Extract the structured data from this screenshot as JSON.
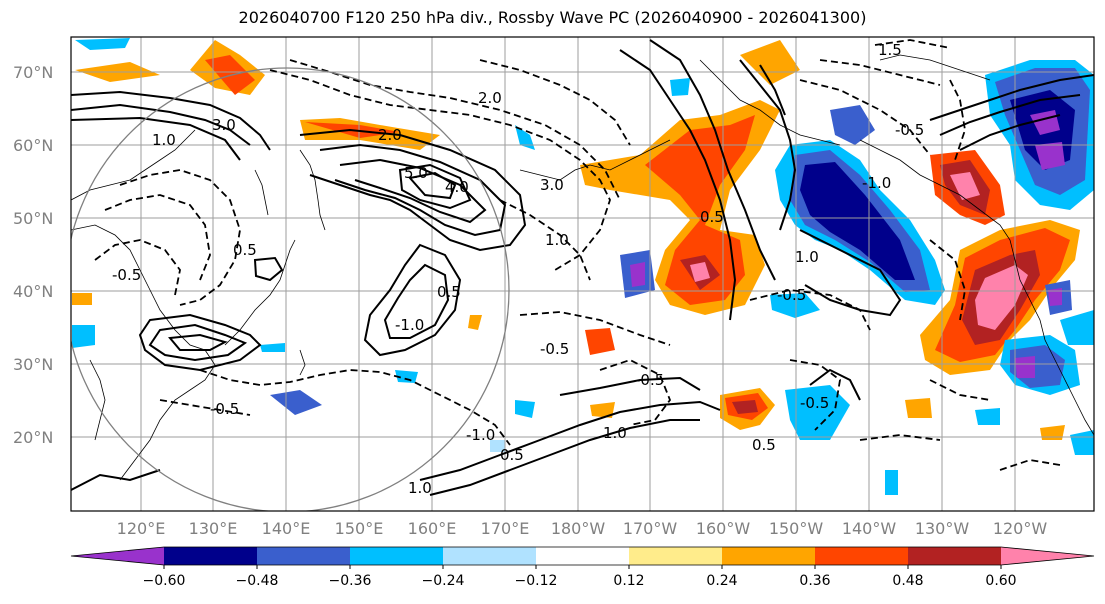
{
  "title": "2026040700 F120 250 hPa div., Rossby Wave PC (2026040900 - 2026041300)",
  "lat_labels": [
    "70°N",
    "60°N",
    "50°N",
    "40°N",
    "30°N",
    "20°N"
  ],
  "lon_labels": [
    "120°E",
    "130°E",
    "140°E",
    "150°E",
    "160°E",
    "170°E",
    "180°W",
    "170°W",
    "160°W",
    "150°W",
    "140°W",
    "130°W",
    "120°W"
  ],
  "contour_labels": [
    "3.0",
    "1.0",
    "2.0",
    "1.5",
    "-0.5",
    "0.5",
    "5.0",
    "4.0",
    "3.0",
    "2.0",
    "1.0",
    "-0.5",
    "0.5",
    "-1.0",
    "-0.5",
    "1.0",
    "-1.0",
    "0.5",
    "1.0",
    "-0.5",
    "0.5",
    "-0.5",
    "-0.5",
    "1.0",
    "-1.0",
    "-0.5",
    "0.5"
  ],
  "colorbar": {
    "colors": [
      "#9932cc",
      "#00008b",
      "#3a5fcd",
      "#00bfff",
      "#b0e2ff",
      "#ffffff",
      "#ffec8b",
      "#ffa500",
      "#ff4500",
      "#b22222",
      "#ff82ab"
    ],
    "ticks": [
      "−0.60",
      "−0.48",
      "−0.36",
      "−0.24",
      "−0.12",
      "0.12",
      "0.24",
      "0.36",
      "0.48",
      "0.60"
    ]
  },
  "legend_colors": {
    "positive_strong": "#ff82ab",
    "negative_strong": "#9932cc"
  }
}
